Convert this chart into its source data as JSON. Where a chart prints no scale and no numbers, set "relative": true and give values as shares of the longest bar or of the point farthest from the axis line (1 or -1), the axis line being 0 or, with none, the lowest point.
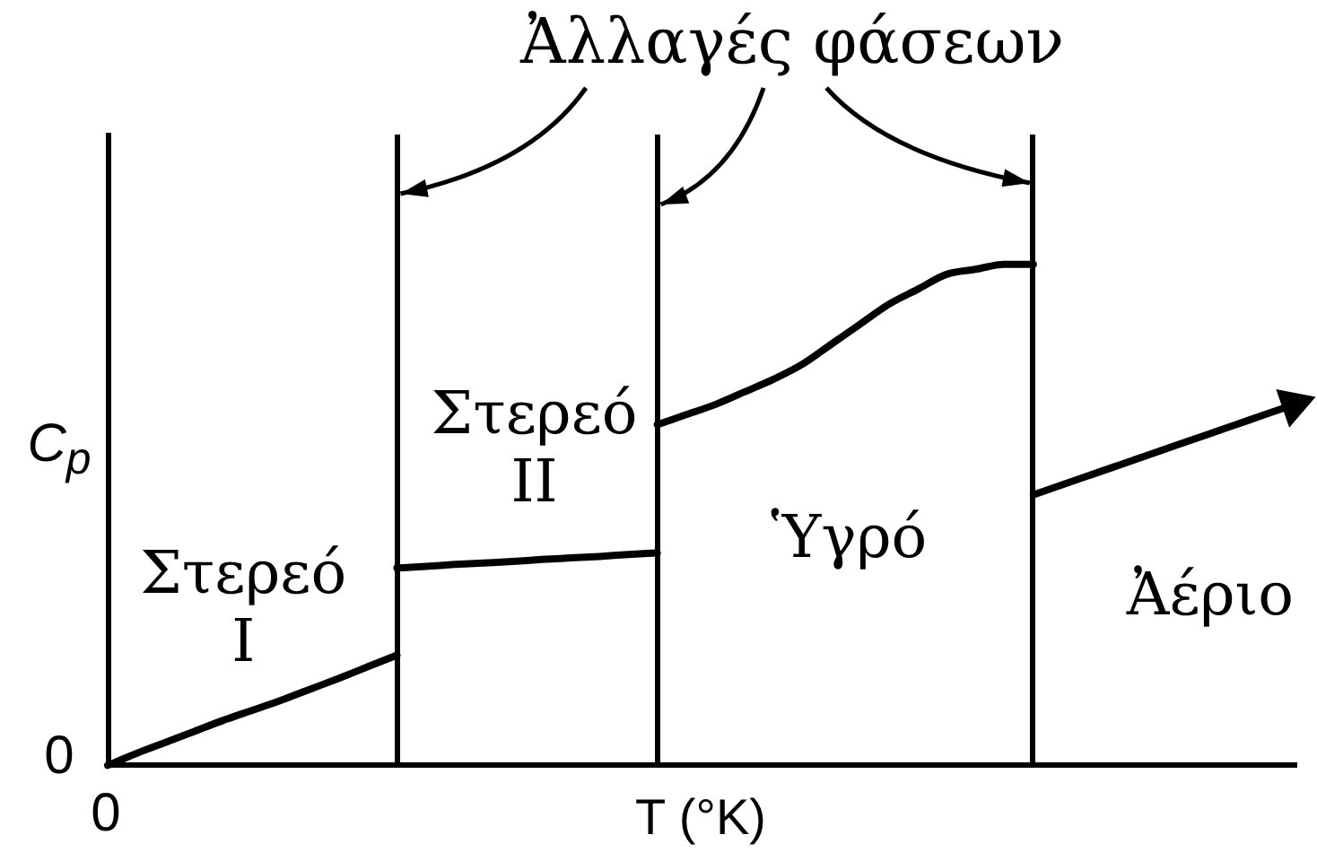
{
  "chart_data": {
    "type": "line",
    "relative": true,
    "grid": "x",
    "categories": [
      null,
      null,
      null,
      null,
      null,
      null,
      null,
      null,
      null,
      null,
      null,
      null,
      null,
      null,
      null,
      null,
      null,
      null,
      null,
      null,
      null,
      null,
      null,
      null,
      null,
      null,
      null,
      null,
      null,
      null,
      null,
      null,
      null,
      null,
      null,
      null,
      null,
      null,
      null,
      null,
      null,
      null
    ],
    "series": [
      {
        "name": "Στερεό I",
        "color": "#000000",
        "values": [
          0,
          0.024,
          0.046,
          0.068,
          0.09,
          0.11,
          0.13,
          0.152,
          0.174,
          0.197,
          0.22,
          null,
          null,
          null,
          null,
          null,
          null,
          null,
          null,
          null,
          null,
          null,
          null,
          null,
          null,
          null,
          null,
          null,
          null,
          null,
          null,
          null,
          null,
          null,
          null,
          null,
          null,
          null,
          null,
          null,
          null,
          null
        ]
      },
      {
        "name": "Στερεό II",
        "color": "#000000",
        "values": [
          null,
          null,
          null,
          null,
          null,
          null,
          null,
          null,
          null,
          null,
          0.394,
          0.397,
          0.401,
          0.404,
          0.407,
          0.411,
          0.414,
          0.417,
          0.421,
          0.424,
          null,
          null,
          null,
          null,
          null,
          null,
          null,
          null,
          null,
          null,
          null,
          null,
          null,
          null,
          null,
          null,
          null,
          null,
          null,
          null,
          null,
          null
        ]
      },
      {
        "name": "Ὑγρό",
        "color": "#000000",
        "values": [
          null,
          null,
          null,
          null,
          null,
          null,
          null,
          null,
          null,
          null,
          null,
          null,
          null,
          null,
          null,
          null,
          null,
          null,
          null,
          0.68,
          0.7,
          0.72,
          0.745,
          0.77,
          0.8,
          0.84,
          0.88,
          0.92,
          0.95,
          0.98,
          0.99,
          1,
          1,
          null,
          null,
          null,
          null,
          null,
          null,
          null,
          null,
          null
        ]
      },
      {
        "name": "Ἀέριο",
        "color": "#000000",
        "values": [
          null,
          null,
          null,
          null,
          null,
          null,
          null,
          null,
          null,
          null,
          null,
          null,
          null,
          null,
          null,
          null,
          null,
          null,
          null,
          null,
          null,
          null,
          null,
          null,
          null,
          null,
          null,
          null,
          null,
          null,
          null,
          null,
          0.54,
          0.56,
          0.58,
          0.6,
          0.62,
          0.64,
          0.66,
          0.68,
          0.7,
          0.72
        ]
      }
    ],
    "xlabel": "T (°K)",
    "ylabel": "C$_{p}$",
    "annotations": [
      "Ἀλλαγές φάσεων",
      "0",
      "0"
    ]
  }
}
